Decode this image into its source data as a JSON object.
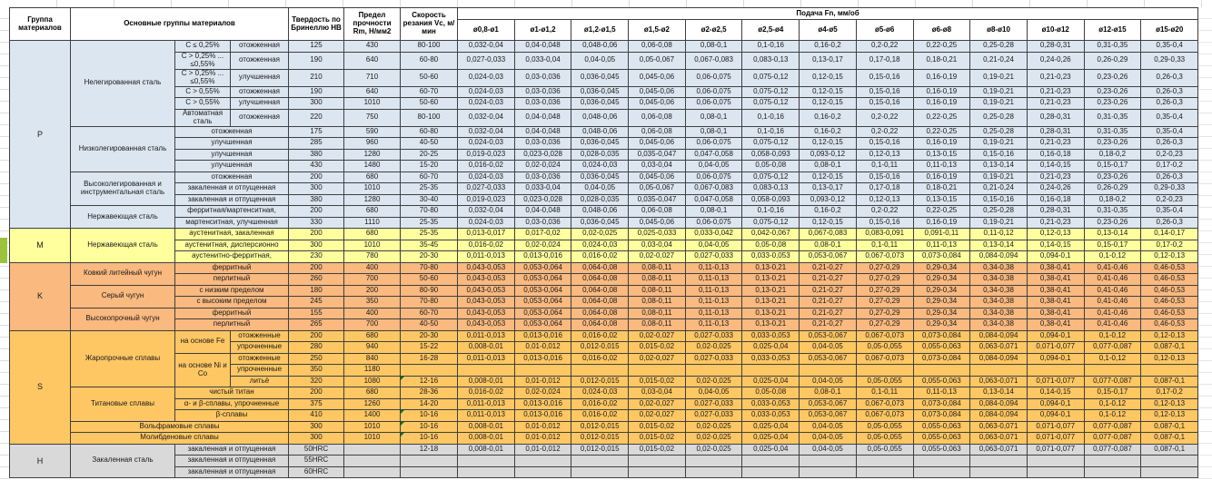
{
  "sheet": {
    "kind": "machining feed/speed reference table (spreadsheet)",
    "language": "ru"
  },
  "colors": {
    "P": "#dce6f1",
    "M": "#ffff9e",
    "K": "#f9b97f",
    "S": "#ffc763",
    "H": "#d9d9d9",
    "header_bg": "#ffffff",
    "grid_line": "#3f3f3f",
    "gutter_highlight": "#9bc43c",
    "comment_marker": "#0b7a0b"
  },
  "header": {
    "top": [
      {
        "t": "Группа материалов",
        "rs": 2,
        "n": "header-material-group"
      },
      {
        "t": "Основные группы материалов",
        "rs": 2,
        "cs": 3,
        "n": "header-main-groups"
      },
      {
        "t": "Твердость по Бринеллю НВ",
        "rs": 2,
        "n": "header-hardness"
      },
      {
        "t": "Предел прочности Rm, Н/мм2",
        "rs": 2,
        "n": "header-strength"
      },
      {
        "t": "Скорость резания Vc, м/мин",
        "rs": 2,
        "n": "header-cutting-speed"
      },
      {
        "t": "Подача Fn, мм/об",
        "cs": 13,
        "n": "header-feed"
      }
    ],
    "diameters": [
      "ø0,8-ø1",
      "ø1-ø1,2",
      "ø1,2-ø1,5",
      "ø1,5-ø2",
      "ø2-ø2,5",
      "ø2,5-ø4",
      "ø4-ø5",
      "ø5-ø6",
      "ø6-ø8",
      "ø8-ø10",
      "ø10-ø12",
      "ø12-ø15",
      "ø15-ø20"
    ]
  },
  "feed_sets": {
    "A": [
      "0,032-0,04",
      "0,04-0,048",
      "0,048-0,06",
      "0,06-0,08",
      "0,08-0,1",
      "0,1-0,16",
      "0,16-0,2",
      "0,2-0,22",
      "0,22-0,25",
      "0,25-0,28",
      "0,28-0,31",
      "0,31-0,35",
      "0,35-0,4"
    ],
    "B": [
      "0,027-0,033",
      "0,033-0,04",
      "0,04-0,05",
      "0,05-0,067",
      "0,067-0,083",
      "0,083-0,13",
      "0,13-0,17",
      "0,17-0,18",
      "0,18-0,21",
      "0,21-0,24",
      "0,24-0,26",
      "0,26-0,29",
      "0,29-0,33"
    ],
    "C": [
      "0,024-0,03",
      "0,03-0,036",
      "0,036-0,045",
      "0,045-0,06",
      "0,06-0,075",
      "0,075-0,12",
      "0,12-0,15",
      "0,15-0,16",
      "0,16-0,19",
      "0,19-0,21",
      "0,21-0,23",
      "0,23-0,26",
      "0,26-0,3"
    ],
    "D": [
      "0,019-0,023",
      "0,023-0,028",
      "0,028-0,035",
      "0,035-0,047",
      "0,047-0,058",
      "0,058-0,093",
      "0,093-0,12",
      "0,12-0,13",
      "0,13-0,15",
      "0,15-0,16",
      "0,16-0,18",
      "0,18-0,2",
      "0,2-0,23"
    ],
    "E": [
      "0,016-0,02",
      "0,02-0,024",
      "0,024-0,03",
      "0,03-0,04",
      "0,04-0,05",
      "0,05-0,08",
      "0,08-0,1",
      "0,1-0,11",
      "0,11-0,13",
      "0,13-0,14",
      "0,14-0,15",
      "0,15-0,17",
      "0,17-0,2"
    ],
    "F": [
      "0,013-0,017",
      "0,017-0,02",
      "0,02-0,025",
      "0,025-0,033",
      "0,033-0,042",
      "0,042-0,067",
      "0,067-0,083",
      "0,083-0,091",
      "0,091-0,11",
      "0,11-0,12",
      "0,12-0,13",
      "0,13-0,14",
      "0,14-0,17"
    ],
    "G": [
      "0,011-0,013",
      "0,013-0,016",
      "0,016-0,02",
      "0,02-0,027",
      "0,027-0,033",
      "0,033-0,053",
      "0,053-0,067",
      "0,067-0,073",
      "0,073-0,084",
      "0,084-0,094",
      "0,094-0,1",
      "0,1-0,12",
      "0,12-0,13"
    ],
    "H": [
      "0,043-0,053",
      "0,053-0,064",
      "0,064-0,08",
      "0,08-0,11",
      "0,11-0,13",
      "0,13-0,21",
      "0,21-0,27",
      "0,27-0,29",
      "0,29-0,34",
      "0,34-0,38",
      "0,38-0,41",
      "0,41-0,46",
      "0,46-0,53"
    ],
    "I": [
      "0,008-0,01",
      "0,01-0,012",
      "0,012-0,015",
      "0,015-0,02",
      "0,02-0,025",
      "0,025-0,04",
      "0,04-0,05",
      "0,05-0,055",
      "0,055-0,063",
      "0,063-0,071",
      "0,071-0,077",
      "0,077-0,087",
      "0,087-0,1"
    ]
  },
  "rows": [
    {
      "g": "P",
      "cells": [
        {
          "t": "P",
          "rs": 15,
          "n": "material-group-letter"
        },
        {
          "t": "Нелегированная сталь",
          "rs": 6,
          "n": "material-family"
        },
        {
          "t": "C ≤ 0,25%"
        },
        {
          "t": "отожженная"
        },
        {
          "t": "125"
        },
        {
          "t": "430"
        },
        {
          "t": "80-100"
        }
      ],
      "feeds": "A"
    },
    {
      "g": "P",
      "tall": true,
      "cells": [
        {
          "t": "C > 0,25% ... ≤0,55%"
        },
        {
          "t": "отожженная"
        },
        {
          "t": "190"
        },
        {
          "t": "640"
        },
        {
          "t": "60-80"
        }
      ],
      "feeds": "B"
    },
    {
      "g": "P",
      "tall": true,
      "cells": [
        {
          "t": "C > 0,25% ... ≤0,55%"
        },
        {
          "t": "улучшенная"
        },
        {
          "t": "210"
        },
        {
          "t": "710"
        },
        {
          "t": "50-60"
        }
      ],
      "feeds": "C"
    },
    {
      "g": "P",
      "cells": [
        {
          "t": "C > 0,55%"
        },
        {
          "t": "отожженная"
        },
        {
          "t": "190"
        },
        {
          "t": "640"
        },
        {
          "t": "60-70"
        }
      ],
      "feeds": "C"
    },
    {
      "g": "P",
      "cells": [
        {
          "t": "C > 0,55%"
        },
        {
          "t": "улучшенная"
        },
        {
          "t": "300"
        },
        {
          "t": "1010"
        },
        {
          "t": "50-60"
        }
      ],
      "feeds": "C"
    },
    {
      "g": "P",
      "tall": true,
      "cells": [
        {
          "t": "Автоматная сталь"
        },
        {
          "t": "отожженная"
        },
        {
          "t": "220"
        },
        {
          "t": "750"
        },
        {
          "t": "80-100"
        }
      ],
      "feeds": "A"
    },
    {
      "g": "P",
      "cells": [
        {
          "t": "Низколегированная сталь",
          "rs": 4,
          "n": "material-family"
        },
        {
          "t": "отожженная",
          "cs": 2
        },
        {
          "t": "175"
        },
        {
          "t": "590"
        },
        {
          "t": "60-80"
        }
      ],
      "feeds": "A"
    },
    {
      "g": "P",
      "cells": [
        {
          "t": "улучшенная",
          "cs": 2
        },
        {
          "t": "285"
        },
        {
          "t": "960"
        },
        {
          "t": "40-50"
        }
      ],
      "feeds": "C"
    },
    {
      "g": "P",
      "cells": [
        {
          "t": "улучшенная",
          "cs": 2
        },
        {
          "t": "380"
        },
        {
          "t": "1280"
        },
        {
          "t": "20-25"
        }
      ],
      "feeds": "D"
    },
    {
      "g": "P",
      "cells": [
        {
          "t": "улучшенная",
          "cs": 2
        },
        {
          "t": "430"
        },
        {
          "t": "1480"
        },
        {
          "t": "15-20"
        }
      ],
      "feeds": "E"
    },
    {
      "g": "P",
      "cells": [
        {
          "t": "Высоколегированная и инструментальная сталь",
          "rs": 3,
          "n": "material-family"
        },
        {
          "t": "отожженная",
          "cs": 2
        },
        {
          "t": "200"
        },
        {
          "t": "680"
        },
        {
          "t": "60-70"
        }
      ],
      "feeds": "C"
    },
    {
      "g": "P",
      "cells": [
        {
          "t": "закаленная и отпущенная",
          "cs": 2
        },
        {
          "t": "300"
        },
        {
          "t": "1010"
        },
        {
          "t": "25-35"
        }
      ],
      "feeds": "B"
    },
    {
      "g": "P",
      "cells": [
        {
          "t": "закаленная и отпущенная",
          "cs": 2
        },
        {
          "t": "380"
        },
        {
          "t": "1280"
        },
        {
          "t": "30-40"
        }
      ],
      "feeds": "D"
    },
    {
      "g": "P",
      "cells": [
        {
          "t": "Нержавеющая сталь",
          "rs": 2,
          "n": "material-family"
        },
        {
          "t": "ферритная/мартенситная,",
          "cs": 2
        },
        {
          "t": "200"
        },
        {
          "t": "680"
        },
        {
          "t": "70-80"
        }
      ],
      "feeds": "A"
    },
    {
      "g": "P",
      "cells": [
        {
          "t": "мартенситная, улучшенная",
          "cs": 2
        },
        {
          "t": "330"
        },
        {
          "t": "1110"
        },
        {
          "t": "25-35"
        }
      ],
      "feeds": "C"
    },
    {
      "g": "M",
      "cells": [
        {
          "t": "M",
          "rs": 3,
          "n": "material-group-letter"
        },
        {
          "t": "Нержавеющая сталь",
          "rs": 3,
          "n": "material-family"
        },
        {
          "t": "аустенитная, закаленная",
          "cs": 2
        },
        {
          "t": "200"
        },
        {
          "t": "680"
        },
        {
          "t": "25-35"
        }
      ],
      "feeds": "F"
    },
    {
      "g": "M",
      "cells": [
        {
          "t": "аустенитная, дисперсионно",
          "cs": 2
        },
        {
          "t": "300"
        },
        {
          "t": "1010"
        },
        {
          "t": "35-45"
        }
      ],
      "feeds": "E"
    },
    {
      "g": "M",
      "cells": [
        {
          "t": "аустенитно-ферритная,",
          "cs": 2
        },
        {
          "t": "230"
        },
        {
          "t": "780"
        },
        {
          "t": "20-30"
        }
      ],
      "feeds": "G"
    },
    {
      "g": "K",
      "cells": [
        {
          "t": "K",
          "rs": 6,
          "n": "material-group-letter"
        },
        {
          "t": "Ковкий литейный чугун",
          "rs": 2,
          "n": "material-family"
        },
        {
          "t": "ферритный",
          "cs": 2
        },
        {
          "t": "200"
        },
        {
          "t": "400"
        },
        {
          "t": "70-80"
        }
      ],
      "feeds": "H"
    },
    {
      "g": "K",
      "cells": [
        {
          "t": "перлитный",
          "cs": 2
        },
        {
          "t": "260"
        },
        {
          "t": "700"
        },
        {
          "t": "50-60"
        }
      ],
      "feeds": "H"
    },
    {
      "g": "K",
      "cells": [
        {
          "t": "Серый чугун",
          "rs": 2,
          "n": "material-family"
        },
        {
          "t": "с низким пределом",
          "cs": 2
        },
        {
          "t": "180"
        },
        {
          "t": "200"
        },
        {
          "t": "80-90"
        }
      ],
      "feeds": "H"
    },
    {
      "g": "K",
      "cells": [
        {
          "t": "с высоким пределом",
          "cs": 2
        },
        {
          "t": "245"
        },
        {
          "t": "350"
        },
        {
          "t": "70-80"
        }
      ],
      "feeds": "H"
    },
    {
      "g": "K",
      "cells": [
        {
          "t": "Высокопрочный чугун",
          "rs": 2,
          "n": "material-family"
        },
        {
          "t": "ферритный",
          "cs": 2
        },
        {
          "t": "155"
        },
        {
          "t": "400"
        },
        {
          "t": "60-70"
        }
      ],
      "feeds": "H"
    },
    {
      "g": "K",
      "cells": [
        {
          "t": "перлитный",
          "cs": 2
        },
        {
          "t": "265"
        },
        {
          "t": "700"
        },
        {
          "t": "40-50"
        }
      ],
      "feeds": "H"
    },
    {
      "g": "S",
      "cells": [
        {
          "t": "S",
          "rs": 10,
          "n": "material-group-letter"
        },
        {
          "t": "Жаропрочные сплавы",
          "rs": 5,
          "n": "material-family"
        },
        {
          "t": "на основе Fe",
          "rs": 2
        },
        {
          "t": "отожженные"
        },
        {
          "t": "200"
        },
        {
          "t": "680"
        },
        {
          "t": "20-30"
        }
      ],
      "feeds": "G"
    },
    {
      "g": "S",
      "cells": [
        {
          "t": "упрочненные"
        },
        {
          "t": "280"
        },
        {
          "t": "940"
        },
        {
          "t": "15-22"
        }
      ],
      "feeds": "I"
    },
    {
      "g": "S",
      "cells": [
        {
          "t": "на основе Ni и Co",
          "rs": 3
        },
        {
          "t": "отожженные"
        },
        {
          "t": "250"
        },
        {
          "t": "840"
        },
        {
          "t": "16-28"
        }
      ],
      "feeds": "G"
    },
    {
      "g": "S",
      "cells": [
        {
          "t": "упрочненные"
        },
        {
          "t": "350"
        },
        {
          "t": "1180"
        },
        {
          "t": ""
        }
      ],
      "feeds": "none"
    },
    {
      "g": "S",
      "cells": [
        {
          "t": "литьё"
        },
        {
          "t": "320"
        },
        {
          "t": "1080"
        },
        {
          "t": "12-16",
          "tri": true
        }
      ],
      "feeds": "I"
    },
    {
      "g": "S",
      "cells": [
        {
          "t": "Титановые сплавы",
          "rs": 3,
          "n": "material-family"
        },
        {
          "t": "чистый титан",
          "cs": 2
        },
        {
          "t": "200"
        },
        {
          "t": "680"
        },
        {
          "t": "28-36"
        }
      ],
      "feeds": "E"
    },
    {
      "g": "S",
      "cells": [
        {
          "t": "α- и β-сплавы, упрочненные",
          "cs": 2
        },
        {
          "t": "375"
        },
        {
          "t": "1260"
        },
        {
          "t": "14-20"
        }
      ],
      "feeds": "G"
    },
    {
      "g": "S",
      "cells": [
        {
          "t": "β-сплавы",
          "cs": 2
        },
        {
          "t": "410"
        },
        {
          "t": "1400"
        },
        {
          "t": "10-16",
          "tri": true
        }
      ],
      "feeds": "G"
    },
    {
      "g": "S",
      "cells": [
        {
          "t": "Вольфрамовые сплавы",
          "cs": 3,
          "n": "material-family"
        },
        {
          "t": "300"
        },
        {
          "t": "1010"
        },
        {
          "t": "10-16",
          "tri": true
        }
      ],
      "feeds": "I"
    },
    {
      "g": "S",
      "cells": [
        {
          "t": "Молибденовые сплавы",
          "cs": 3,
          "n": "material-family"
        },
        {
          "t": "300"
        },
        {
          "t": "1010"
        },
        {
          "t": "10-16",
          "tri": true
        }
      ],
      "feeds": "I"
    },
    {
      "g": "H",
      "cells": [
        {
          "t": "H",
          "rs": 3,
          "n": "material-group-letter"
        },
        {
          "t": "Закаленная сталь",
          "rs": 3,
          "n": "material-family"
        },
        {
          "t": "закаленная и отпущенная",
          "cs": 2
        },
        {
          "t": "50HRC"
        },
        {
          "t": ""
        },
        {
          "t": "12-18"
        }
      ],
      "feeds": "I"
    },
    {
      "g": "H",
      "cells": [
        {
          "t": "закаленная и отпущенная",
          "cs": 2
        },
        {
          "t": "55HRC"
        },
        {
          "t": ""
        },
        {
          "t": ""
        }
      ],
      "feeds": "none"
    },
    {
      "g": "H",
      "cells": [
        {
          "t": "закаленная и отпущенная",
          "cs": 2
        },
        {
          "t": "60HRC"
        },
        {
          "t": ""
        },
        {
          "t": ""
        }
      ],
      "feeds": "none"
    }
  ]
}
